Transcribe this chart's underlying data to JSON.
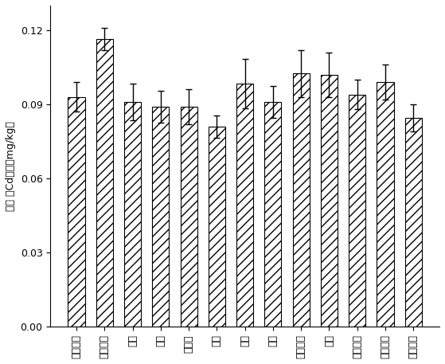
{
  "categories": [
    "非根际土",
    "金丝雀柳",
    "银柳",
    "蒿柳",
    "川滇柳",
    "旱柳",
    "杨树",
    "水杉",
    "红石竹楠",
    "滇楠",
    "红花椴木",
    "金叶女贞",
    "金边黄杨"
  ],
  "values": [
    0.093,
    0.1165,
    0.091,
    0.089,
    0.089,
    0.081,
    0.0985,
    0.091,
    0.1025,
    0.102,
    0.094,
    0.099,
    0.0845
  ],
  "errors": [
    0.006,
    0.0045,
    0.0075,
    0.0065,
    0.007,
    0.0045,
    0.01,
    0.0065,
    0.0095,
    0.009,
    0.006,
    0.007,
    0.0055
  ],
  "ylabel": "有效 态Cd含量（mg/kg）",
  "ylim": [
    0.0,
    0.13
  ],
  "yticks": [
    0.0,
    0.03,
    0.06,
    0.09,
    0.12
  ],
  "bar_color": "white",
  "hatch": "///",
  "edgecolor": "black",
  "figsize": [
    5.59,
    4.57
  ],
  "dpi": 100
}
